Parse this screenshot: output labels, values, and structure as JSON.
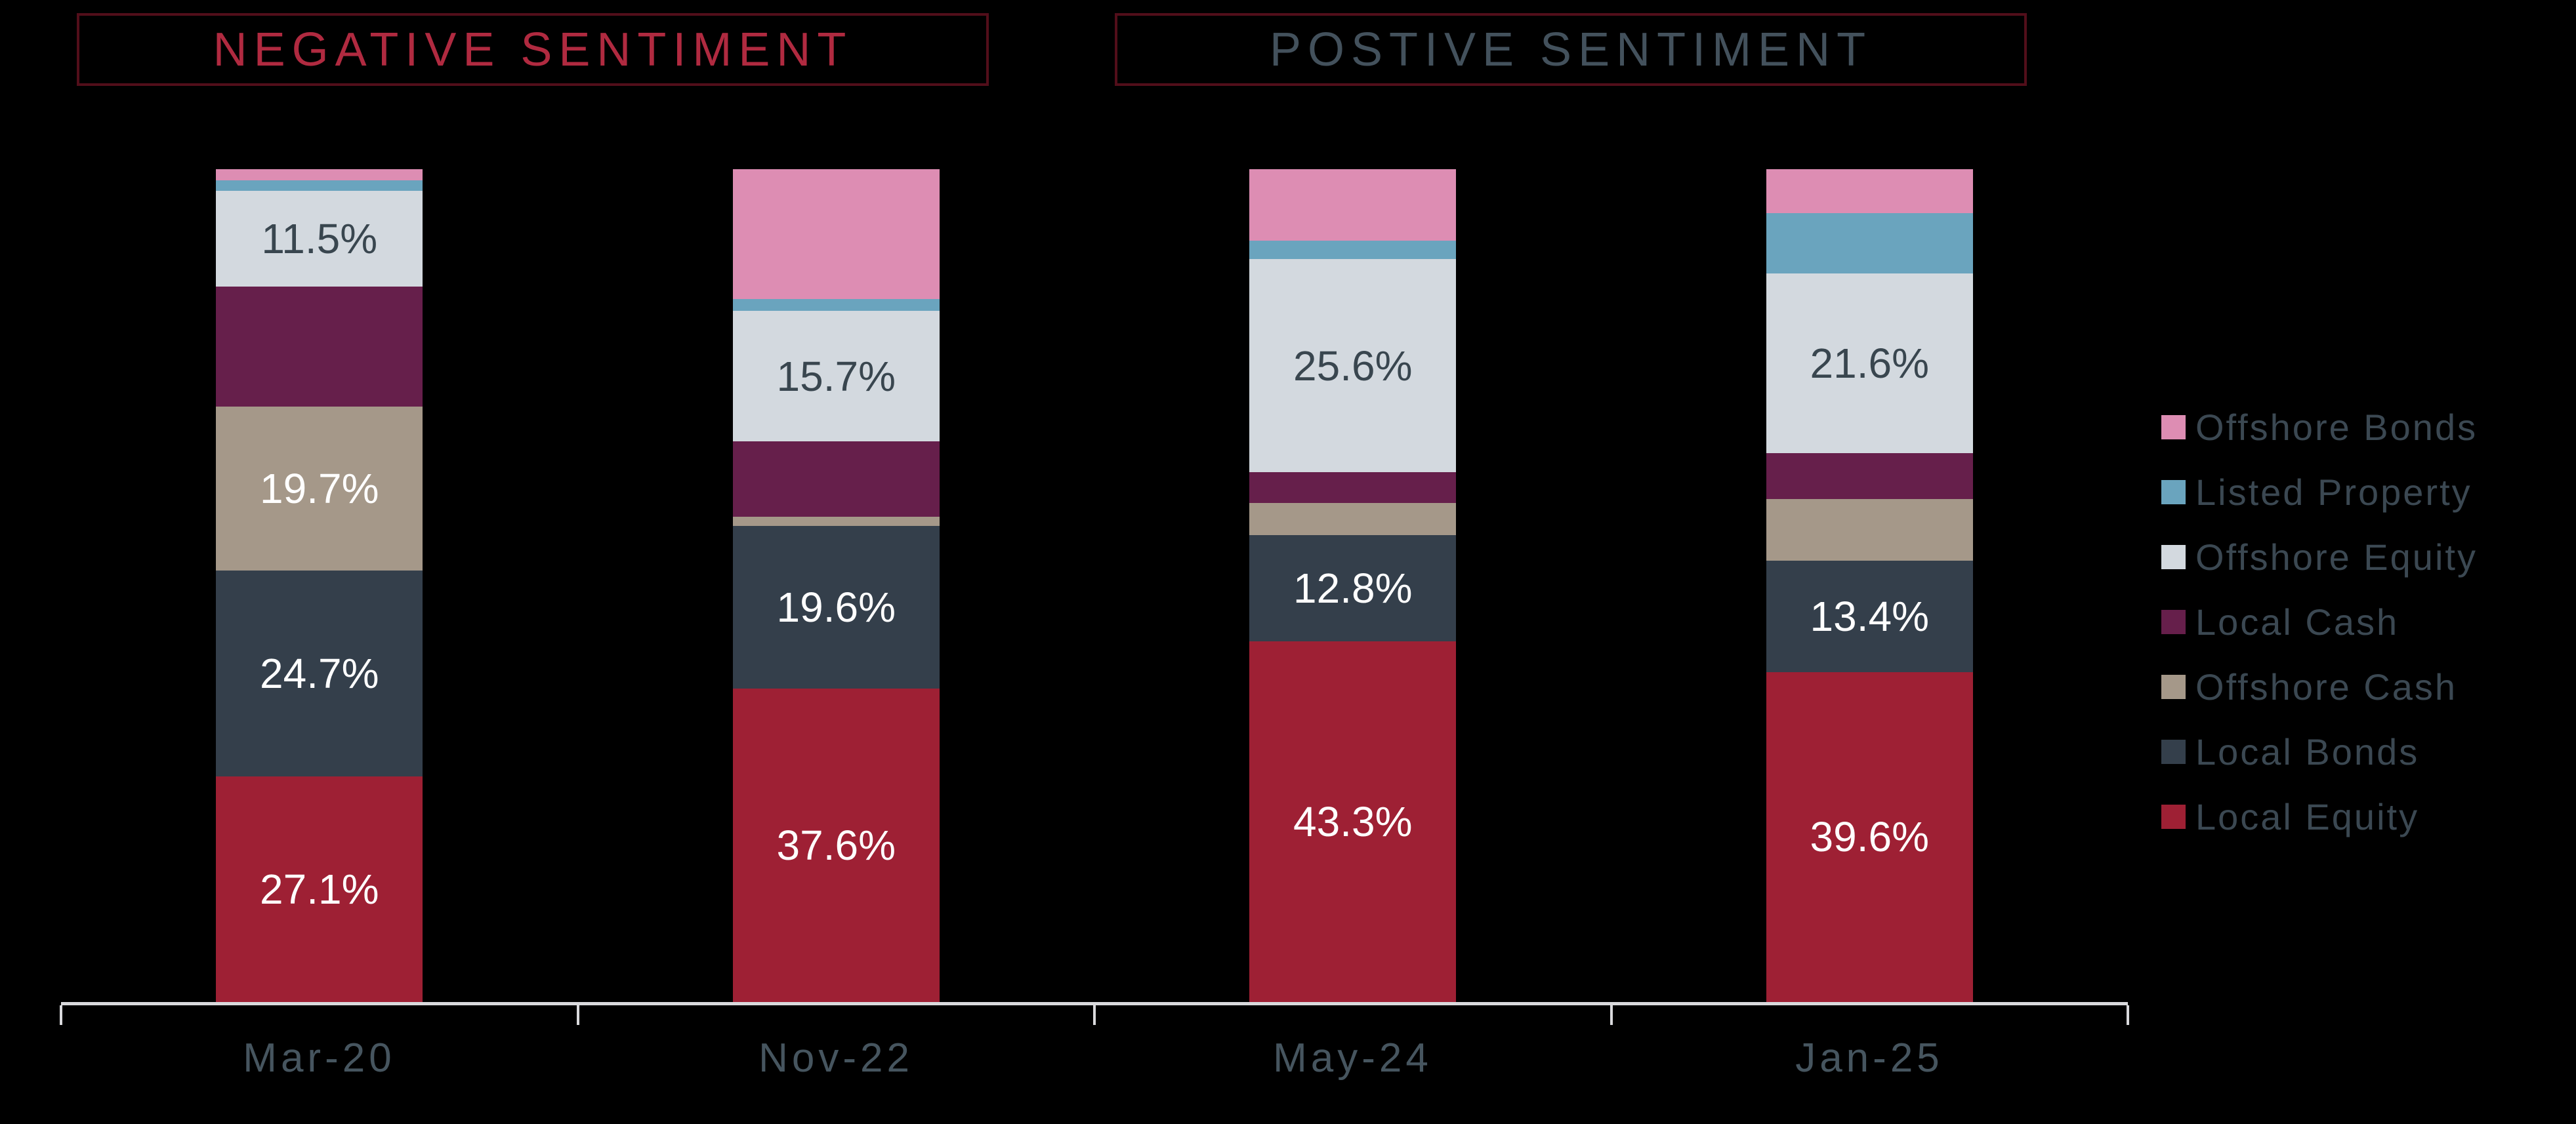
{
  "header": {
    "negative_label": "NEGATIVE SENTIMENT",
    "positive_label": "POSTIVE SENTIMENT"
  },
  "colors": {
    "background": "#000000",
    "negative_title_text": "#b02a40",
    "positive_title_text": "#43515c",
    "title_box_border": "#520e1a",
    "axis_line": "#d9d9dc",
    "axis_label_text": "#46555f",
    "legend_text": "#3b4852",
    "segment_label_dark": "#39464f",
    "segment_label_light": "#ffffff"
  },
  "chart_data": {
    "type": "bar",
    "subtype": "stacked-100-percent",
    "title": "",
    "xlabel": "",
    "ylabel": "",
    "ylim": [
      0,
      100
    ],
    "grid": false,
    "legend_position": "right",
    "categories": [
      "Mar-20",
      "Nov-22",
      "May-24",
      "Jan-25"
    ],
    "stacking_note": "series listed top-to-bottom as drawn in each bar; values are percent of total; unlabeled segment values estimated from pixel heights",
    "series": [
      {
        "name": "Offshore Bonds",
        "color": "#dd8db3",
        "values": [
          1.3,
          15.6,
          8.6,
          5.3
        ],
        "labels": [
          null,
          null,
          null,
          null
        ]
      },
      {
        "name": "Listed Property",
        "color": "#6aa4be",
        "values": [
          1.3,
          1.4,
          2.2,
          7.2
        ],
        "labels": [
          null,
          null,
          null,
          null
        ]
      },
      {
        "name": "Offshore Equity",
        "color": "#d3d9df",
        "values": [
          11.5,
          15.7,
          25.6,
          21.6
        ],
        "labels": [
          "11.5%",
          "15.7%",
          "25.6%",
          "21.6%"
        ],
        "label_style": "dark"
      },
      {
        "name": "Local Cash",
        "color": "#661f4b",
        "values": [
          14.4,
          9.0,
          3.7,
          5.5
        ],
        "labels": [
          null,
          null,
          null,
          null
        ]
      },
      {
        "name": "Offshore Cash",
        "color": "#a59889",
        "values": [
          19.7,
          1.1,
          3.8,
          7.4
        ],
        "labels": [
          "19.7%",
          null,
          null,
          null
        ],
        "label_style": "light"
      },
      {
        "name": "Local Bonds",
        "color": "#343f4b",
        "values": [
          24.7,
          19.6,
          12.8,
          13.4
        ],
        "labels": [
          "24.7%",
          "19.6%",
          "12.8%",
          "13.4%"
        ],
        "label_style": "light"
      },
      {
        "name": "Local Equity",
        "color": "#9e2034",
        "values": [
          27.1,
          37.6,
          43.3,
          39.6
        ],
        "labels": [
          "27.1%",
          "37.6%",
          "43.3%",
          "39.6%"
        ],
        "label_style": "light"
      }
    ],
    "legend_entries": [
      "Offshore Bonds",
      "Listed Property",
      "Offshore Equity",
      "Local Cash",
      "Offshore Cash",
      "Local Bonds",
      "Local Equity"
    ]
  }
}
